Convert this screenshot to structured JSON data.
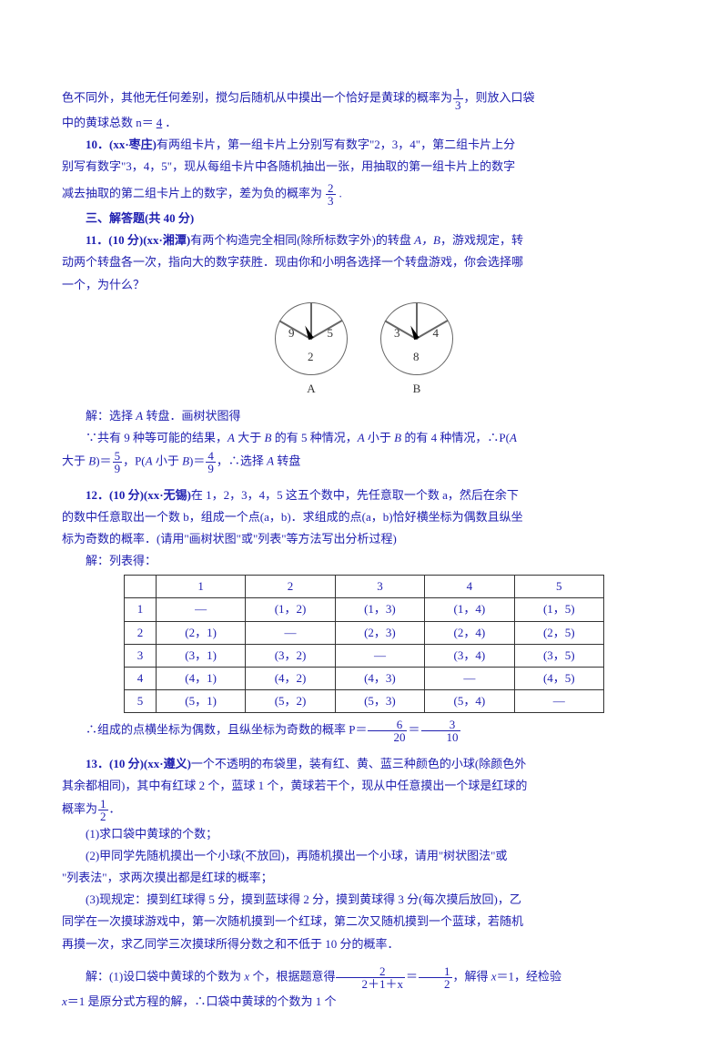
{
  "q9": {
    "line1": "色不同外，其他无任何差别，搅匀后随机从中摸出一个恰好是黄球的概率为",
    "tail": "，则放入口袋",
    "line2": "中的黄球总数 n＝",
    "ans": "4",
    "period": "．",
    "frac_n": "1",
    "frac_d": "3"
  },
  "q10": {
    "label": "10．(xx·枣庄)",
    "body1": "有两组卡片，第一组卡片上分别写有数字\"2，3，4\"，第二组卡片上分",
    "body2": "别写有数字\"3，4，5\"，现从每组卡片中各随机抽出一张，用抽取的第一组卡片上的数字",
    "body3": "减去抽取的第二组卡片上的数字，差为负的概率为",
    "ans_pre": "__",
    "ans_post": "__.",
    "fn": "2",
    "fd": "3"
  },
  "section3": "三、解答题(共 40 分)",
  "q11": {
    "label": "11．(10 分)(xx·湘潭)",
    "body1": "有两个构造完全相同(除所标数字外)的转盘 ",
    "AB": "A，B",
    "body2": "，游戏规定，转",
    "body3": "动两个转盘各一次，指向大的数字获胜．现由你和小明各选择一个转盘游戏，你会选择哪",
    "body4": "一个，为什么？",
    "spinA": {
      "nums": [
        "9",
        "5",
        "2"
      ],
      "label": "A"
    },
    "spinB": {
      "nums": [
        "3",
        "4",
        "8"
      ],
      "label": "B"
    },
    "sol1": "解：选择 ",
    "solA": "A",
    "sol1b": " 转盘．画树状图得",
    "sol2a": "∵共有 9 种等可能的结果，",
    "sol2b": " 大于 ",
    "sol2c": " 的有 5 种情况，",
    "sol2d": " 小于 ",
    "sol2e": " 的有 4 种情况，∴P(",
    "sol2f": "大于 ",
    "sol2g": ")＝",
    "f1n": "5",
    "f1d": "9",
    "sol2h": "，P(",
    "sol2i": " 小于 ",
    "sol2j": ")＝",
    "f2n": "4",
    "f2d": "9",
    "sol2k": "，∴选择 ",
    "sol2l": " 转盘"
  },
  "q12": {
    "label": "12．(10 分)(xx·无锡)",
    "body1": "在 1，2，3，4，5 这五个数中，先任意取一个数 a，然后在余下",
    "body2": "的数中任意取出一个数 b，组成一个点(a，b)．求组成的点(a，b)恰好横坐标为偶数且纵坐",
    "body3": "标为奇数的概率．(请用\"画树状图\"或\"列表\"等方法写出分析过程)",
    "sol": "解：列表得：",
    "tbl": {
      "h": [
        "",
        "1",
        "2",
        "3",
        "4",
        "5"
      ],
      "r": [
        [
          "1",
          "—",
          "(1，2)",
          "(1，3)",
          "(1，4)",
          "(1，5)"
        ],
        [
          "2",
          "(2，1)",
          "—",
          "(2，3)",
          "(2，4)",
          "(2，5)"
        ],
        [
          "3",
          "(3，1)",
          "(3，2)",
          "—",
          "(3，4)",
          "(3，5)"
        ],
        [
          "4",
          "(4，1)",
          "(4，2)",
          "(4，3)",
          "—",
          "(4，5)"
        ],
        [
          "5",
          "(5，1)",
          "(5，2)",
          "(5，3)",
          "(5，4)",
          "—"
        ]
      ]
    },
    "conc": "∴组成的点横坐标为偶数，且纵坐标为奇数的概率 P＝",
    "f1n": "6",
    "f1d": "20",
    "eq": "＝",
    "f2n": "3",
    "f2d": "10"
  },
  "q13": {
    "label": "13．(10 分)(xx·遵义)",
    "body1": "一个不透明的布袋里，装有红、黄、蓝三种颜色的小球(除颜色外",
    "body2": "其余都相同)，其中有红球 2 个，蓝球 1 个，黄球若干个，现从中任意摸出一个球是红球的",
    "body3": "概率为",
    "fn": "1",
    "fd": "2",
    "period": "．",
    "p1": "(1)求口袋中黄球的个数；",
    "p2a": "(2)甲同学先随机摸出一个小球(不放回)，再随机摸出一个小球，请用\"树状图法\"或",
    "p2b": "\"列表法\"，求两次摸出都是红球的概率；",
    "p3a": "(3)现规定：摸到红球得 5 分，摸到蓝球得 2 分，摸到黄球得 3 分(每次摸后放回)，乙",
    "p3b": "同学在一次摸球游戏中，第一次随机摸到一个红球，第二次又随机摸到一个蓝球，若随机",
    "p3c": "再摸一次，求乙同学三次摸球所得分数之和不低于 10 分的概率．",
    "sol1a": "解：(1)设口袋中黄球的个数为 ",
    "sol1x": "x",
    "sol1b": " 个，根据题意得",
    "sfn": "2",
    "sfd": "2＋1＋x",
    "sol1eq": "＝",
    "sfn2": "1",
    "sfd2": "2",
    "sol1c": "，解得 ",
    "sol1d": "＝1，经检验",
    "sol1e": "＝1 是原分式方程的解，∴口袋中黄球的个数为 1 个"
  }
}
